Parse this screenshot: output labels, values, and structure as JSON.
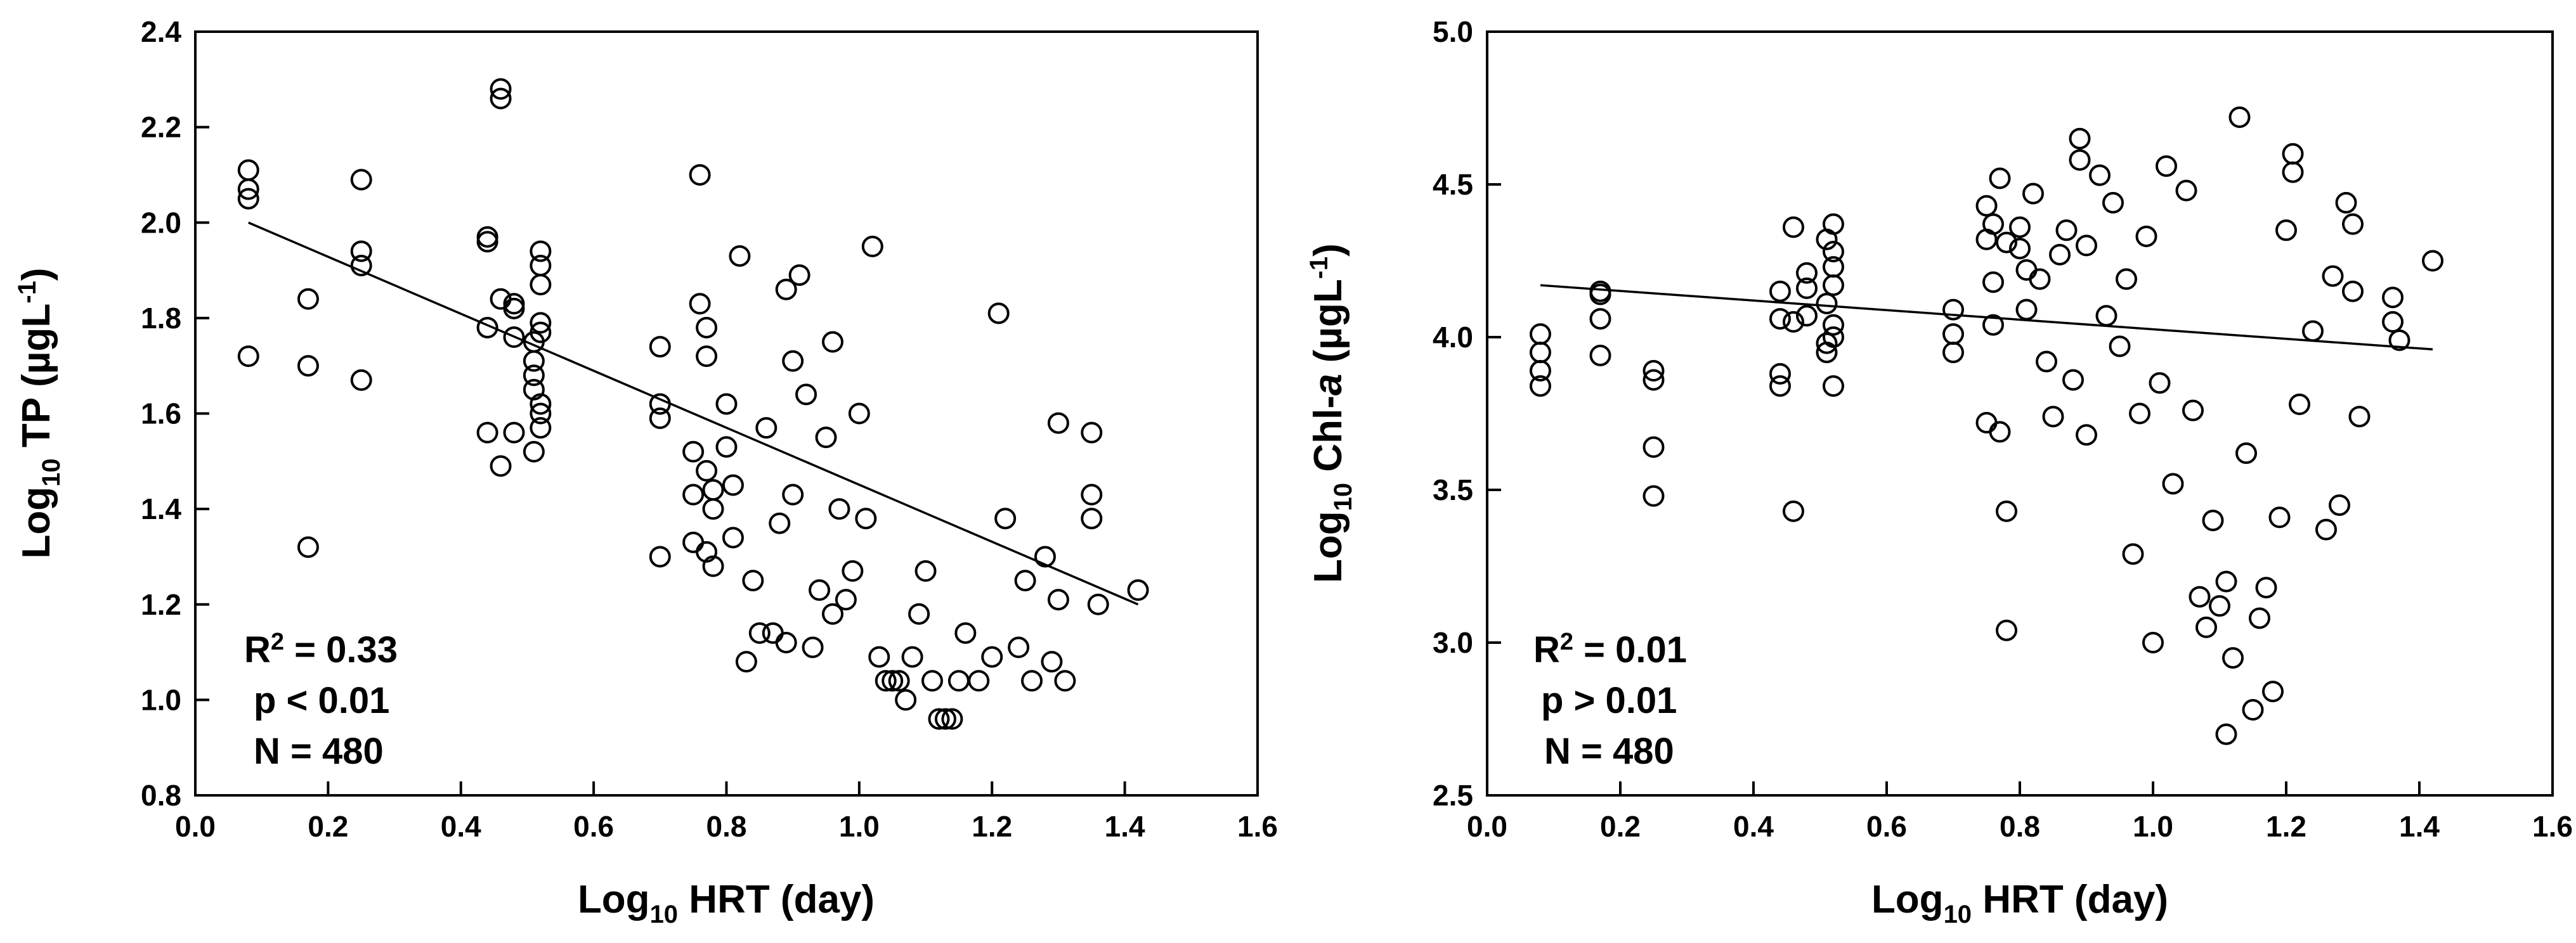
{
  "chart_data": [
    {
      "type": "scatter",
      "title": "",
      "xlabel": {
        "base": "Log",
        "sub": "10",
        "rest": " HRT (day)"
      },
      "ylabel": {
        "base": "Log",
        "sub": "10",
        "mid": " TP (µgL",
        "sup": "-1",
        "end": ")"
      },
      "xlim": [
        0.0,
        1.6
      ],
      "ylim": [
        0.8,
        2.4
      ],
      "xticks": [
        "0.0",
        "0.2",
        "0.4",
        "0.6",
        "0.8",
        "1.0",
        "1.2",
        "1.4",
        "1.6"
      ],
      "yticks": [
        "0.8",
        "1.0",
        "1.2",
        "1.4",
        "1.6",
        "1.8",
        "2.0",
        "2.2",
        "2.4"
      ],
      "trendline": {
        "x": [
          0.08,
          1.42
        ],
        "y": [
          2.0,
          1.2
        ]
      },
      "stats": {
        "r2_prefix": "R",
        "r2_sup": "2",
        "r2_value": " = 0.33",
        "p": "p < 0.01",
        "n": "N = 480"
      },
      "points": [
        [
          0.08,
          2.11
        ],
        [
          0.08,
          2.07
        ],
        [
          0.08,
          2.05
        ],
        [
          0.08,
          1.72
        ],
        [
          0.17,
          1.84
        ],
        [
          0.17,
          1.7
        ],
        [
          0.17,
          1.32
        ],
        [
          0.25,
          2.09
        ],
        [
          0.25,
          1.94
        ],
        [
          0.25,
          1.91
        ],
        [
          0.25,
          1.67
        ],
        [
          0.44,
          1.97
        ],
        [
          0.44,
          1.96
        ],
        [
          0.44,
          1.78
        ],
        [
          0.44,
          1.56
        ],
        [
          0.46,
          2.28
        ],
        [
          0.46,
          2.26
        ],
        [
          0.46,
          1.84
        ],
        [
          0.46,
          1.49
        ],
        [
          0.48,
          1.83
        ],
        [
          0.48,
          1.82
        ],
        [
          0.48,
          1.76
        ],
        [
          0.48,
          1.56
        ],
        [
          0.51,
          1.75
        ],
        [
          0.51,
          1.71
        ],
        [
          0.51,
          1.68
        ],
        [
          0.51,
          1.65
        ],
        [
          0.51,
          1.52
        ],
        [
          0.52,
          1.94
        ],
        [
          0.52,
          1.91
        ],
        [
          0.52,
          1.87
        ],
        [
          0.52,
          1.79
        ],
        [
          0.52,
          1.77
        ],
        [
          0.52,
          1.62
        ],
        [
          0.52,
          1.6
        ],
        [
          0.52,
          1.57
        ],
        [
          0.7,
          1.74
        ],
        [
          0.7,
          1.62
        ],
        [
          0.7,
          1.59
        ],
        [
          0.7,
          1.3
        ],
        [
          0.75,
          1.52
        ],
        [
          0.75,
          1.43
        ],
        [
          0.75,
          1.33
        ],
        [
          0.76,
          2.1
        ],
        [
          0.76,
          1.83
        ],
        [
          0.77,
          1.78
        ],
        [
          0.77,
          1.72
        ],
        [
          0.77,
          1.48
        ],
        [
          0.77,
          1.31
        ],
        [
          0.78,
          1.44
        ],
        [
          0.78,
          1.4
        ],
        [
          0.78,
          1.28
        ],
        [
          0.8,
          1.62
        ],
        [
          0.8,
          1.53
        ],
        [
          0.81,
          1.45
        ],
        [
          0.81,
          1.34
        ],
        [
          0.82,
          1.93
        ],
        [
          0.83,
          1.08
        ],
        [
          0.84,
          1.25
        ],
        [
          0.85,
          1.14
        ],
        [
          0.86,
          1.57
        ],
        [
          0.87,
          1.14
        ],
        [
          0.88,
          1.37
        ],
        [
          0.89,
          1.86
        ],
        [
          0.89,
          1.12
        ],
        [
          0.9,
          1.71
        ],
        [
          0.9,
          1.43
        ],
        [
          0.91,
          1.89
        ],
        [
          0.92,
          1.64
        ],
        [
          0.93,
          1.11
        ],
        [
          0.94,
          1.23
        ],
        [
          0.95,
          1.55
        ],
        [
          0.96,
          1.75
        ],
        [
          0.96,
          1.18
        ],
        [
          0.97,
          1.4
        ],
        [
          0.98,
          1.21
        ],
        [
          0.99,
          1.27
        ],
        [
          1.0,
          1.6
        ],
        [
          1.01,
          1.38
        ],
        [
          1.02,
          1.95
        ],
        [
          1.03,
          1.09
        ],
        [
          1.04,
          1.04
        ],
        [
          1.05,
          1.04
        ],
        [
          1.06,
          1.04
        ],
        [
          1.07,
          1.0
        ],
        [
          1.08,
          1.09
        ],
        [
          1.09,
          1.18
        ],
        [
          1.1,
          1.27
        ],
        [
          1.11,
          1.04
        ],
        [
          1.12,
          0.96
        ],
        [
          1.13,
          0.96
        ],
        [
          1.14,
          0.96
        ],
        [
          1.15,
          1.04
        ],
        [
          1.16,
          1.14
        ],
        [
          1.18,
          1.04
        ],
        [
          1.2,
          1.09
        ],
        [
          1.21,
          1.81
        ],
        [
          1.22,
          1.38
        ],
        [
          1.24,
          1.11
        ],
        [
          1.25,
          1.25
        ],
        [
          1.26,
          1.04
        ],
        [
          1.28,
          1.3
        ],
        [
          1.29,
          1.08
        ],
        [
          1.3,
          1.58
        ],
        [
          1.3,
          1.21
        ],
        [
          1.31,
          1.04
        ],
        [
          1.35,
          1.56
        ],
        [
          1.35,
          1.43
        ],
        [
          1.35,
          1.38
        ],
        [
          1.36,
          1.2
        ],
        [
          1.42,
          1.23
        ]
      ]
    },
    {
      "type": "scatter",
      "title": "",
      "xlabel": {
        "base": "Log",
        "sub": "10",
        "rest": " HRT (day)"
      },
      "ylabel": {
        "base": "Log",
        "sub": "10",
        "mid": " Chl-",
        "ital": "a",
        "mid2": " (µgL",
        "sup": "-1",
        "end": ")"
      },
      "xlim": [
        0.0,
        1.6
      ],
      "ylim": [
        2.5,
        5.0
      ],
      "xticks": [
        "0.0",
        "0.2",
        "0.4",
        "0.6",
        "0.8",
        "1.0",
        "1.2",
        "1.4",
        "1.6"
      ],
      "yticks": [
        "2.5",
        "3.0",
        "3.5",
        "4.0",
        "4.5",
        "5.0"
      ],
      "trendline": {
        "x": [
          0.08,
          1.42
        ],
        "y": [
          4.17,
          3.96
        ]
      },
      "stats": {
        "r2_prefix": "R",
        "r2_sup": "2",
        "r2_value": " = 0.01",
        "p": "p > 0.01",
        "n": "N = 480"
      },
      "points": [
        [
          0.08,
          4.01
        ],
        [
          0.08,
          3.95
        ],
        [
          0.08,
          3.89
        ],
        [
          0.08,
          3.84
        ],
        [
          0.17,
          4.15
        ],
        [
          0.17,
          4.14
        ],
        [
          0.17,
          4.06
        ],
        [
          0.17,
          3.94
        ],
        [
          0.25,
          3.89
        ],
        [
          0.25,
          3.86
        ],
        [
          0.25,
          3.64
        ],
        [
          0.25,
          3.48
        ],
        [
          0.44,
          4.15
        ],
        [
          0.44,
          4.06
        ],
        [
          0.44,
          3.88
        ],
        [
          0.44,
          3.84
        ],
        [
          0.46,
          4.36
        ],
        [
          0.46,
          4.05
        ],
        [
          0.46,
          3.43
        ],
        [
          0.48,
          4.21
        ],
        [
          0.48,
          4.16
        ],
        [
          0.48,
          4.07
        ],
        [
          0.51,
          4.32
        ],
        [
          0.51,
          4.11
        ],
        [
          0.51,
          3.98
        ],
        [
          0.51,
          3.95
        ],
        [
          0.52,
          4.37
        ],
        [
          0.52,
          4.28
        ],
        [
          0.52,
          4.23
        ],
        [
          0.52,
          4.17
        ],
        [
          0.52,
          4.04
        ],
        [
          0.52,
          4.0
        ],
        [
          0.52,
          3.84
        ],
        [
          0.7,
          4.09
        ],
        [
          0.7,
          4.01
        ],
        [
          0.7,
          3.95
        ],
        [
          0.75,
          4.43
        ],
        [
          0.75,
          4.32
        ],
        [
          0.75,
          3.72
        ],
        [
          0.76,
          4.37
        ],
        [
          0.76,
          4.18
        ],
        [
          0.76,
          4.04
        ],
        [
          0.77,
          4.52
        ],
        [
          0.77,
          3.69
        ],
        [
          0.78,
          4.31
        ],
        [
          0.78,
          3.43
        ],
        [
          0.78,
          3.04
        ],
        [
          0.8,
          4.36
        ],
        [
          0.8,
          4.29
        ],
        [
          0.81,
          4.22
        ],
        [
          0.81,
          4.09
        ],
        [
          0.82,
          4.47
        ],
        [
          0.83,
          4.19
        ],
        [
          0.84,
          3.92
        ],
        [
          0.85,
          3.74
        ],
        [
          0.86,
          4.27
        ],
        [
          0.87,
          4.35
        ],
        [
          0.88,
          3.86
        ],
        [
          0.89,
          4.65
        ],
        [
          0.89,
          4.58
        ],
        [
          0.9,
          4.3
        ],
        [
          0.9,
          3.68
        ],
        [
          0.92,
          4.53
        ],
        [
          0.93,
          4.07
        ],
        [
          0.94,
          4.44
        ],
        [
          0.95,
          3.97
        ],
        [
          0.96,
          4.19
        ],
        [
          0.97,
          3.29
        ],
        [
          0.98,
          3.75
        ],
        [
          0.99,
          4.33
        ],
        [
          1.0,
          3.0
        ],
        [
          1.01,
          3.85
        ],
        [
          1.02,
          4.56
        ],
        [
          1.03,
          3.52
        ],
        [
          1.05,
          4.48
        ],
        [
          1.06,
          3.76
        ],
        [
          1.07,
          3.15
        ],
        [
          1.08,
          3.05
        ],
        [
          1.09,
          3.4
        ],
        [
          1.1,
          3.12
        ],
        [
          1.11,
          2.7
        ],
        [
          1.11,
          3.2
        ],
        [
          1.12,
          2.95
        ],
        [
          1.13,
          4.72
        ],
        [
          1.14,
          3.62
        ],
        [
          1.15,
          2.78
        ],
        [
          1.16,
          3.08
        ],
        [
          1.17,
          3.18
        ],
        [
          1.18,
          2.84
        ],
        [
          1.19,
          3.41
        ],
        [
          1.2,
          4.35
        ],
        [
          1.21,
          4.6
        ],
        [
          1.21,
          4.54
        ],
        [
          1.22,
          3.78
        ],
        [
          1.24,
          4.02
        ],
        [
          1.26,
          3.37
        ],
        [
          1.27,
          4.2
        ],
        [
          1.28,
          3.45
        ],
        [
          1.29,
          4.44
        ],
        [
          1.3,
          4.37
        ],
        [
          1.3,
          4.15
        ],
        [
          1.31,
          3.74
        ],
        [
          1.36,
          4.13
        ],
        [
          1.36,
          4.05
        ],
        [
          1.37,
          3.99
        ],
        [
          1.42,
          4.25
        ]
      ]
    }
  ]
}
